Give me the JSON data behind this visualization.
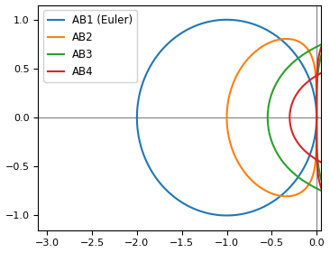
{
  "title": "",
  "xlim": [
    -3.1,
    0.05
  ],
  "ylim": [
    -1.15,
    1.15
  ],
  "xticks": [
    -3.0,
    -2.5,
    -2.0,
    -1.5,
    -1.0,
    -0.5,
    0.0
  ],
  "yticks": [
    -1.0,
    -0.5,
    0.0,
    0.5,
    1.0
  ],
  "legend_labels": [
    "AB1 (Euler)",
    "AB2",
    "AB3",
    "AB4"
  ],
  "colors": [
    "#1f77b4",
    "#ff7f0e",
    "#2ca02c",
    "#d62728"
  ],
  "figsize": [
    3.66,
    2.8
  ],
  "dpi": 100,
  "axhline_color": "gray",
  "axvline_color": "gray",
  "axhline_lw": 0.8,
  "axvline_lw": 0.8
}
